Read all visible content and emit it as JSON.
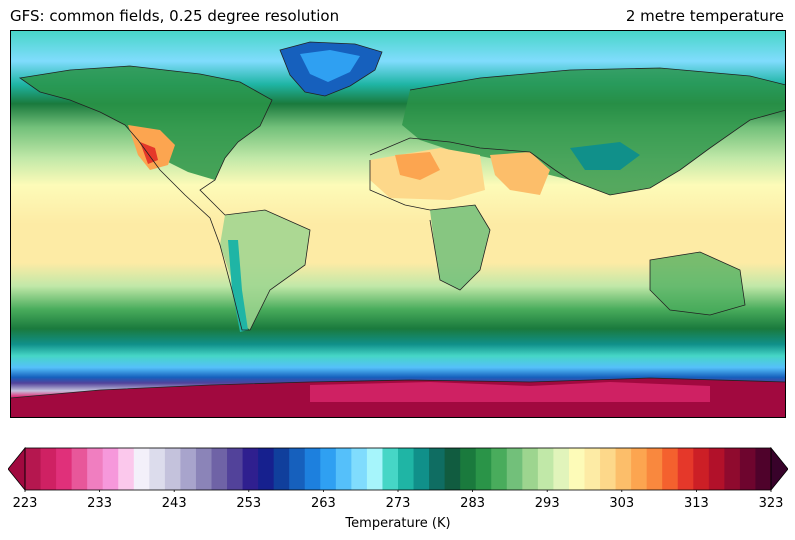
{
  "header": {
    "title_left": "GFS: common fields, 0.25 degree resolution",
    "title_right": "2 metre temperature"
  },
  "colorbar": {
    "label": "Temperature (K)",
    "min": 223,
    "max": 323,
    "step": 2.5,
    "extend": "both",
    "tick_values": [
      223,
      233,
      243,
      253,
      263,
      273,
      283,
      293,
      303,
      313,
      323
    ],
    "tick_labels": [
      "223",
      "233",
      "243",
      "253",
      "263",
      "273",
      "283",
      "293",
      "303",
      "313",
      "323"
    ],
    "colors": [
      "#b5174f",
      "#cf2163",
      "#e0307a",
      "#e8579a",
      "#f07ec0",
      "#f698db",
      "#fbc8ec",
      "#f3f0fa",
      "#dcdcec",
      "#c4c2dc",
      "#a8a4cc",
      "#8b84b8",
      "#6f63a6",
      "#52429a",
      "#2f1f8f",
      "#16208e",
      "#103f9c",
      "#1660bd",
      "#1d80de",
      "#2fa0f2",
      "#55c0fa",
      "#80dcfd",
      "#a6f5fb",
      "#46d6c6",
      "#1fb5a5",
      "#10908a",
      "#0f6d62",
      "#115c40",
      "#1a7a3d",
      "#2a9448",
      "#49ac5c",
      "#72c07a",
      "#9dd58f",
      "#c1e8a8",
      "#e1f4bb",
      "#fdfbb8",
      "#fdeba5",
      "#fdd88a",
      "#fcbe6a",
      "#fca550",
      "#f9883e",
      "#f4612e",
      "#e5382a",
      "#cc1f26",
      "#b2112a",
      "#8f0a2e",
      "#6e052e",
      "#4f022b"
    ],
    "under_color": "#a1093f",
    "over_color": "#38022a"
  },
  "map": {
    "projection": "plate-carree",
    "lon_range": [
      -180,
      180
    ],
    "lat_range": [
      -90,
      90
    ],
    "land_color_note": "coastlines drawn in dark grey"
  }
}
